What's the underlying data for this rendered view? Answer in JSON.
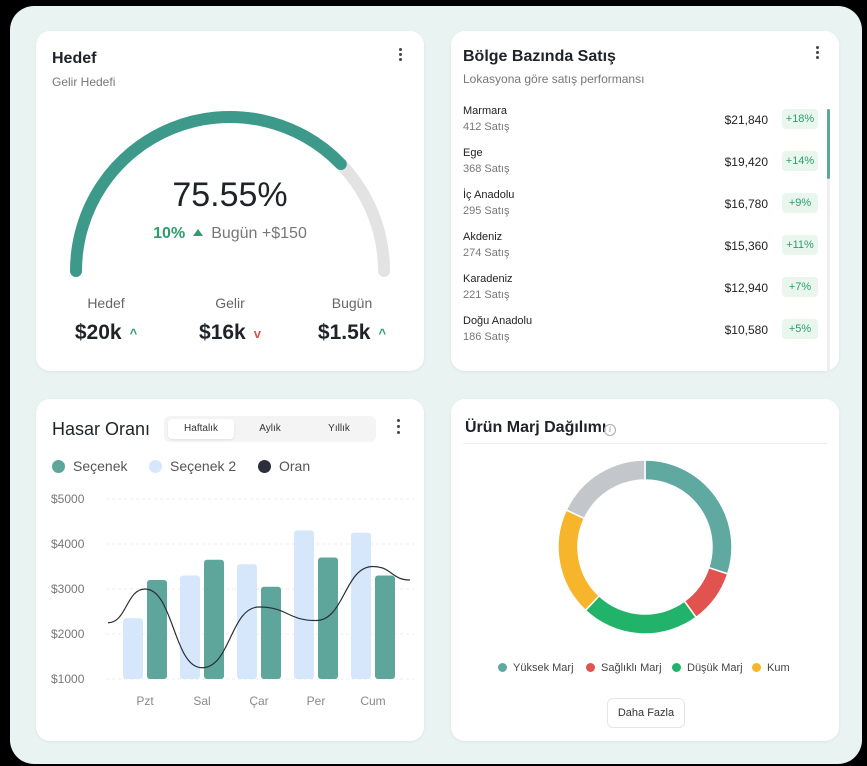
{
  "colors": {
    "teal": "#3d9a8b",
    "light_blue": "#d6e7fb",
    "dark": "#2b2f3a",
    "green": "#2e9c6f",
    "red": "#d9534f"
  },
  "goal": {
    "title": "Hedef",
    "subtitle": "Gelir Hedefi",
    "progress_percent": 75.55,
    "percent_label": "75.55%",
    "change_label": "10%",
    "today_label": "Bugün +$150",
    "stats": [
      {
        "label": "Hedef",
        "value": "$20k",
        "trend": "up"
      },
      {
        "label": "Gelir",
        "value": "$16k",
        "trend": "down"
      },
      {
        "label": "Bugün",
        "value": "$1.5k",
        "trend": "up"
      }
    ]
  },
  "regions": {
    "title": "Bölge Bazında Satış",
    "subtitle": "Lokasyona göre satış performansı",
    "items": [
      {
        "name": "Marmara",
        "count": "412 Satış",
        "amount": "$21,840",
        "change": "+18%"
      },
      {
        "name": "Ege",
        "count": "368 Satış",
        "amount": "$19,420",
        "change": "+14%"
      },
      {
        "name": "İç Anadolu",
        "count": "295 Satış",
        "amount": "$16,780",
        "change": "+9%"
      },
      {
        "name": "Akdeniz",
        "count": "274 Satış",
        "amount": "$15,360",
        "change": "+11%"
      },
      {
        "name": "Karadeniz",
        "count": "221 Satış",
        "amount": "$12,940",
        "change": "+7%"
      },
      {
        "name": "Doğu Anadolu",
        "count": "186 Satış",
        "amount": "$10,580",
        "change": "+5%"
      }
    ]
  },
  "damage": {
    "title": "Hasar Oranı",
    "tabs": [
      "Haftalık",
      "Aylık",
      "Yıllık"
    ],
    "active_tab": 0
  },
  "chart_data": {
    "type": "bar",
    "categories": [
      "Pzt",
      "Sal",
      "Çar",
      "Per",
      "Cum"
    ],
    "series": [
      {
        "name": "Seçenek",
        "values": [
          3200,
          3650,
          3050,
          3700,
          3300
        ]
      },
      {
        "name": "Seçenek 2",
        "values": [
          2350,
          3300,
          3550,
          4300,
          4250
        ]
      },
      {
        "name": "Oran",
        "values": [
          3000,
          1250,
          2600,
          2300,
          3500
        ]
      }
    ],
    "ylim": [
      1000,
      5000
    ],
    "yticks": [
      "$5000",
      "$4000",
      "$3000",
      "$2000",
      "$1000"
    ]
  },
  "margin": {
    "title": "Ürün Marj Dağılımı",
    "info_icon": "info-icon",
    "more_button": "Daha Fazla",
    "donut": [
      {
        "name": "Yüksek Marj",
        "value": 30,
        "color": "#5fa9a0"
      },
      {
        "name": "Sağlıklı Marj",
        "value": 10,
        "color": "#e0534f"
      },
      {
        "name": "Düşük Marj",
        "value": 22,
        "color": "#22b36a"
      },
      {
        "name": "Kum",
        "value": 20,
        "color": "#f7b52c"
      },
      {
        "name": "",
        "value": 18,
        "color": "#c3c6cb"
      }
    ]
  }
}
